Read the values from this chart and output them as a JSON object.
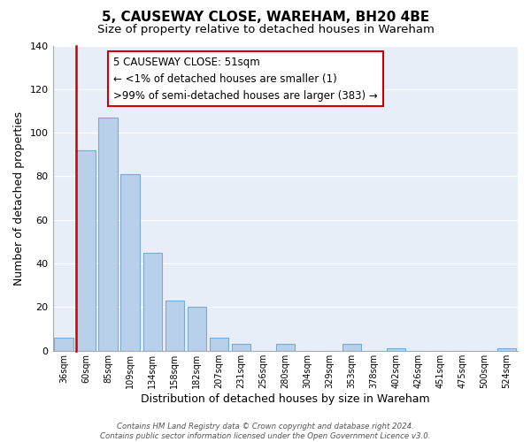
{
  "title": "5, CAUSEWAY CLOSE, WAREHAM, BH20 4BE",
  "subtitle": "Size of property relative to detached houses in Wareham",
  "xlabel": "Distribution of detached houses by size in Wareham",
  "ylabel": "Number of detached properties",
  "bar_labels": [
    "36sqm",
    "60sqm",
    "85sqm",
    "109sqm",
    "134sqm",
    "158sqm",
    "182sqm",
    "207sqm",
    "231sqm",
    "256sqm",
    "280sqm",
    "304sqm",
    "329sqm",
    "353sqm",
    "378sqm",
    "402sqm",
    "426sqm",
    "451sqm",
    "475sqm",
    "500sqm",
    "524sqm"
  ],
  "bar_values": [
    6,
    92,
    107,
    81,
    45,
    23,
    20,
    6,
    3,
    0,
    3,
    0,
    0,
    3,
    0,
    1,
    0,
    0,
    0,
    0,
    1
  ],
  "bar_color": "#b8d0ea",
  "bar_edge_color": "#7aaad0",
  "annotation_line": "5 CAUSEWAY CLOSE: 51sqm",
  "annotation_line2": "← <1% of detached houses are smaller (1)",
  "annotation_line3": ">99% of semi-detached houses are larger (383) →",
  "ylim": [
    0,
    140
  ],
  "yticks": [
    0,
    20,
    40,
    60,
    80,
    100,
    120,
    140
  ],
  "background_color": "#e8eef8",
  "grid_color": "#ffffff",
  "red_line_color": "#cc0000",
  "footnote_line1": "Contains HM Land Registry data © Crown copyright and database right 2024.",
  "footnote_line2": "Contains public sector information licensed under the Open Government Licence v3.0."
}
